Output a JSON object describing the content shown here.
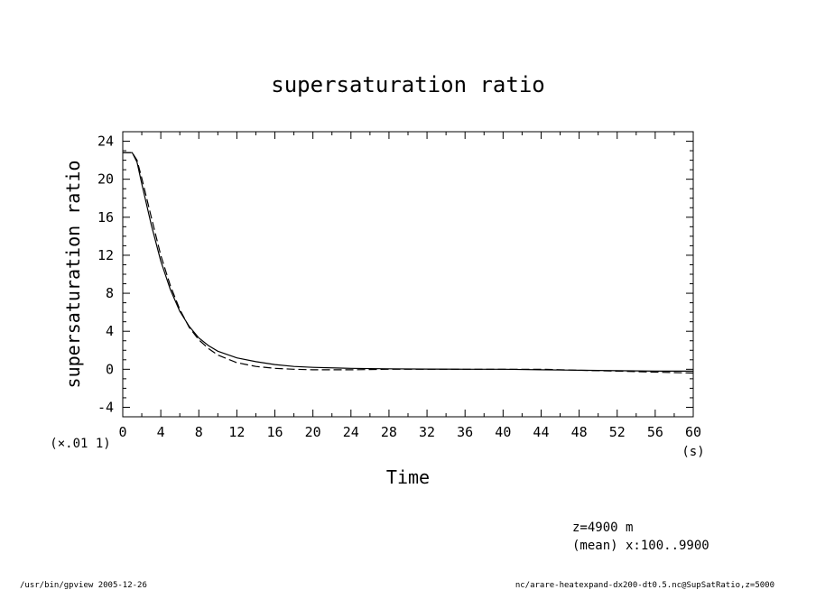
{
  "chart_data": {
    "type": "line",
    "title": "supersaturation ratio",
    "xlabel": "Time",
    "ylabel": "supersaturation ratio",
    "x_unit": "(s)",
    "y_unit": "(×.01 1)",
    "xlim": [
      0,
      60
    ],
    "ylim": [
      -5,
      25
    ],
    "x_ticks": [
      0,
      4,
      8,
      12,
      16,
      20,
      24,
      28,
      32,
      36,
      40,
      44,
      48,
      52,
      56,
      60
    ],
    "y_ticks": [
      -4,
      0,
      4,
      8,
      12,
      16,
      20,
      24
    ],
    "grid": false,
    "legend": "none",
    "series": [
      {
        "style": "solid",
        "x": [
          0,
          0.5,
          1,
          1.5,
          2,
          3,
          4,
          5,
          6,
          7,
          8,
          9,
          10,
          12,
          14,
          16,
          18,
          20,
          24,
          28,
          32,
          36,
          40,
          44,
          48,
          52,
          56,
          60
        ],
        "y": [
          22.8,
          22.8,
          22.8,
          21.8,
          19.5,
          15.2,
          11.4,
          8.4,
          6.1,
          4.5,
          3.3,
          2.5,
          1.9,
          1.2,
          0.8,
          0.5,
          0.3,
          0.2,
          0.1,
          0.05,
          0.02,
          0.0,
          0.0,
          -0.05,
          -0.1,
          -0.15,
          -0.2,
          -0.2
        ]
      },
      {
        "style": "dashed",
        "x": [
          0,
          0.5,
          1,
          1.5,
          2,
          3,
          4,
          5,
          6,
          7,
          8,
          9,
          10,
          12,
          14,
          16,
          18,
          20,
          24,
          28,
          32,
          36,
          40,
          44,
          48,
          52,
          56,
          60
        ],
        "y": [
          22.8,
          22.8,
          22.8,
          22.0,
          20.1,
          16.0,
          12.0,
          8.8,
          6.3,
          4.4,
          3.1,
          2.2,
          1.5,
          0.7,
          0.3,
          0.1,
          0.0,
          -0.05,
          -0.05,
          0.0,
          0.0,
          0.0,
          0.0,
          0.0,
          -0.1,
          -0.2,
          -0.3,
          -0.4
        ]
      }
    ]
  },
  "annotations": {
    "z_level": "z=4900 m",
    "mean_range": "(mean) x:100..9900"
  },
  "footer": {
    "left": "/usr/bin/gpview  2005-12-26",
    "right": "nc/arare-heatexpand-dx200-dt0.5.nc@SupSatRatio,z=5000"
  }
}
